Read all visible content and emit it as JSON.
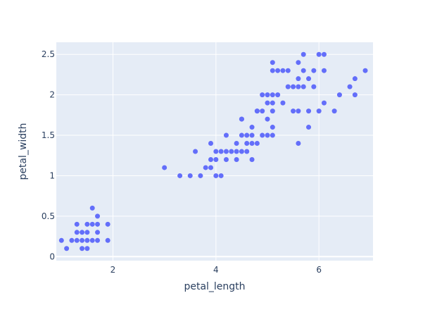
{
  "chart_data": {
    "type": "scatter",
    "title": "",
    "xlabel": "petal_length",
    "ylabel": "petal_width",
    "xlim": [
      0.9,
      7.05
    ],
    "ylim": [
      -0.05,
      2.65
    ],
    "xticks": [
      2,
      4,
      6
    ],
    "yticks": [
      0,
      0.5,
      1,
      1.5,
      2,
      2.5
    ],
    "xtick_labels": [
      "2",
      "4",
      "6"
    ],
    "ytick_labels": [
      "0",
      "0.5",
      "1",
      "1.5",
      "2",
      "2.5"
    ],
    "grid": true,
    "legend": "none",
    "colors": {
      "plot_background": "#e5ecf6",
      "grid": "#ffffff",
      "marker": "#636efa",
      "text": "#2a3f5f"
    },
    "series": [
      {
        "points": [
          [
            1.0,
            0.2
          ],
          [
            1.1,
            0.1
          ],
          [
            1.2,
            0.2
          ],
          [
            1.3,
            0.2
          ],
          [
            1.3,
            0.3
          ],
          [
            1.3,
            0.4
          ],
          [
            1.4,
            0.1
          ],
          [
            1.4,
            0.2
          ],
          [
            1.4,
            0.3
          ],
          [
            1.5,
            0.1
          ],
          [
            1.5,
            0.2
          ],
          [
            1.5,
            0.3
          ],
          [
            1.5,
            0.4
          ],
          [
            1.6,
            0.2
          ],
          [
            1.6,
            0.4
          ],
          [
            1.6,
            0.6
          ],
          [
            1.7,
            0.2
          ],
          [
            1.7,
            0.3
          ],
          [
            1.7,
            0.4
          ],
          [
            1.7,
            0.5
          ],
          [
            1.9,
            0.2
          ],
          [
            1.9,
            0.4
          ],
          [
            3.0,
            1.1
          ],
          [
            3.3,
            1.0
          ],
          [
            3.5,
            1.0
          ],
          [
            3.6,
            1.3
          ],
          [
            3.7,
            1.0
          ],
          [
            3.8,
            1.1
          ],
          [
            3.9,
            1.1
          ],
          [
            3.9,
            1.2
          ],
          [
            3.9,
            1.4
          ],
          [
            4.0,
            1.0
          ],
          [
            4.0,
            1.2
          ],
          [
            4.0,
            1.3
          ],
          [
            4.1,
            1.0
          ],
          [
            4.1,
            1.3
          ],
          [
            4.2,
            1.2
          ],
          [
            4.2,
            1.3
          ],
          [
            4.2,
            1.5
          ],
          [
            4.3,
            1.3
          ],
          [
            4.4,
            1.2
          ],
          [
            4.4,
            1.3
          ],
          [
            4.4,
            1.4
          ],
          [
            4.5,
            1.3
          ],
          [
            4.5,
            1.5
          ],
          [
            4.5,
            1.7
          ],
          [
            4.6,
            1.3
          ],
          [
            4.6,
            1.4
          ],
          [
            4.6,
            1.5
          ],
          [
            4.7,
            1.2
          ],
          [
            4.7,
            1.4
          ],
          [
            4.7,
            1.5
          ],
          [
            4.7,
            1.6
          ],
          [
            4.8,
            1.4
          ],
          [
            4.8,
            1.8
          ],
          [
            4.9,
            1.5
          ],
          [
            5.0,
            1.7
          ],
          [
            5.1,
            1.6
          ],
          [
            4.5,
            1.7
          ],
          [
            4.8,
            1.8
          ],
          [
            4.9,
            1.8
          ],
          [
            4.9,
            2.0
          ],
          [
            5.0,
            1.5
          ],
          [
            5.0,
            1.9
          ],
          [
            5.0,
            2.0
          ],
          [
            5.1,
            1.5
          ],
          [
            5.1,
            1.8
          ],
          [
            5.1,
            1.9
          ],
          [
            5.1,
            2.0
          ],
          [
            5.1,
            2.3
          ],
          [
            5.1,
            2.4
          ],
          [
            5.2,
            2.0
          ],
          [
            5.2,
            2.3
          ],
          [
            5.3,
            1.9
          ],
          [
            5.3,
            2.3
          ],
          [
            5.4,
            2.1
          ],
          [
            5.4,
            2.3
          ],
          [
            5.5,
            1.8
          ],
          [
            5.5,
            2.1
          ],
          [
            5.6,
            1.4
          ],
          [
            5.6,
            1.8
          ],
          [
            5.6,
            2.1
          ],
          [
            5.6,
            2.2
          ],
          [
            5.6,
            2.4
          ],
          [
            5.7,
            2.1
          ],
          [
            5.7,
            2.3
          ],
          [
            5.7,
            2.5
          ],
          [
            5.8,
            1.6
          ],
          [
            5.8,
            1.8
          ],
          [
            5.8,
            2.2
          ],
          [
            5.9,
            2.1
          ],
          [
            5.9,
            2.3
          ],
          [
            6.0,
            1.8
          ],
          [
            6.0,
            2.5
          ],
          [
            6.1,
            1.9
          ],
          [
            6.1,
            2.3
          ],
          [
            6.1,
            2.5
          ],
          [
            6.3,
            1.8
          ],
          [
            6.4,
            2.0
          ],
          [
            6.6,
            2.1
          ],
          [
            6.7,
            2.0
          ],
          [
            6.7,
            2.2
          ],
          [
            6.9,
            2.3
          ]
        ]
      }
    ]
  }
}
